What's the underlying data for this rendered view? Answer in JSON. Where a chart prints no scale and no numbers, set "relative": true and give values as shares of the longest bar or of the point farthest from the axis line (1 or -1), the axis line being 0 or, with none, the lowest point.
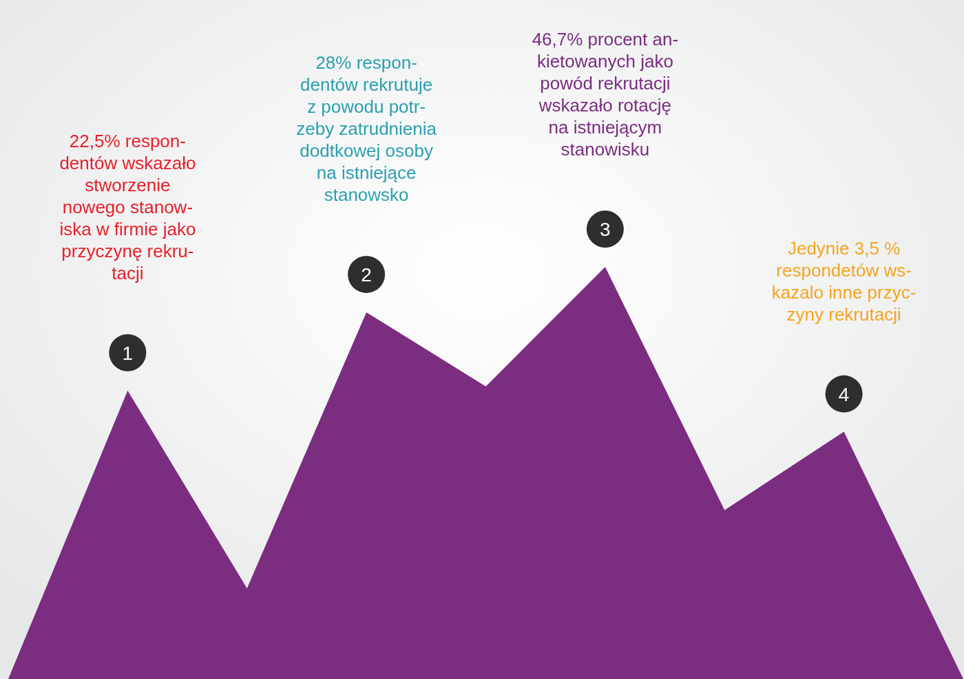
{
  "chart_data": {
    "type": "area",
    "relative": true,
    "color": "#7b2d80",
    "categories": [
      null,
      "1",
      null,
      "2",
      null,
      "3",
      null,
      "4",
      null
    ],
    "values": [
      0,
      0.7,
      0.22,
      0.89,
      0.71,
      1,
      0.41,
      0.6,
      0
    ],
    "annotations": [
      "22,5% respon-\ndentów wskazało\nstworzenie\nnowego stanow-\niska w firmie jako\nprzyczynę rekru-\ntacji",
      "28% respon-\ndentów rekrutuje\nz powodu potr-\nzeby zatrudnienia\ndodtkowej osoby\nna istniejące\nstanowsko",
      "46,7% procent an-\nkietowanych jako\npowód rekrutacji\nwskazało rotację\nna istniejącym\nstanowisku",
      "Jedynie 3,5 %\nrespondetów ws-\nkazalo inne przyc-\nzyny rekrutacji"
    ]
  }
}
